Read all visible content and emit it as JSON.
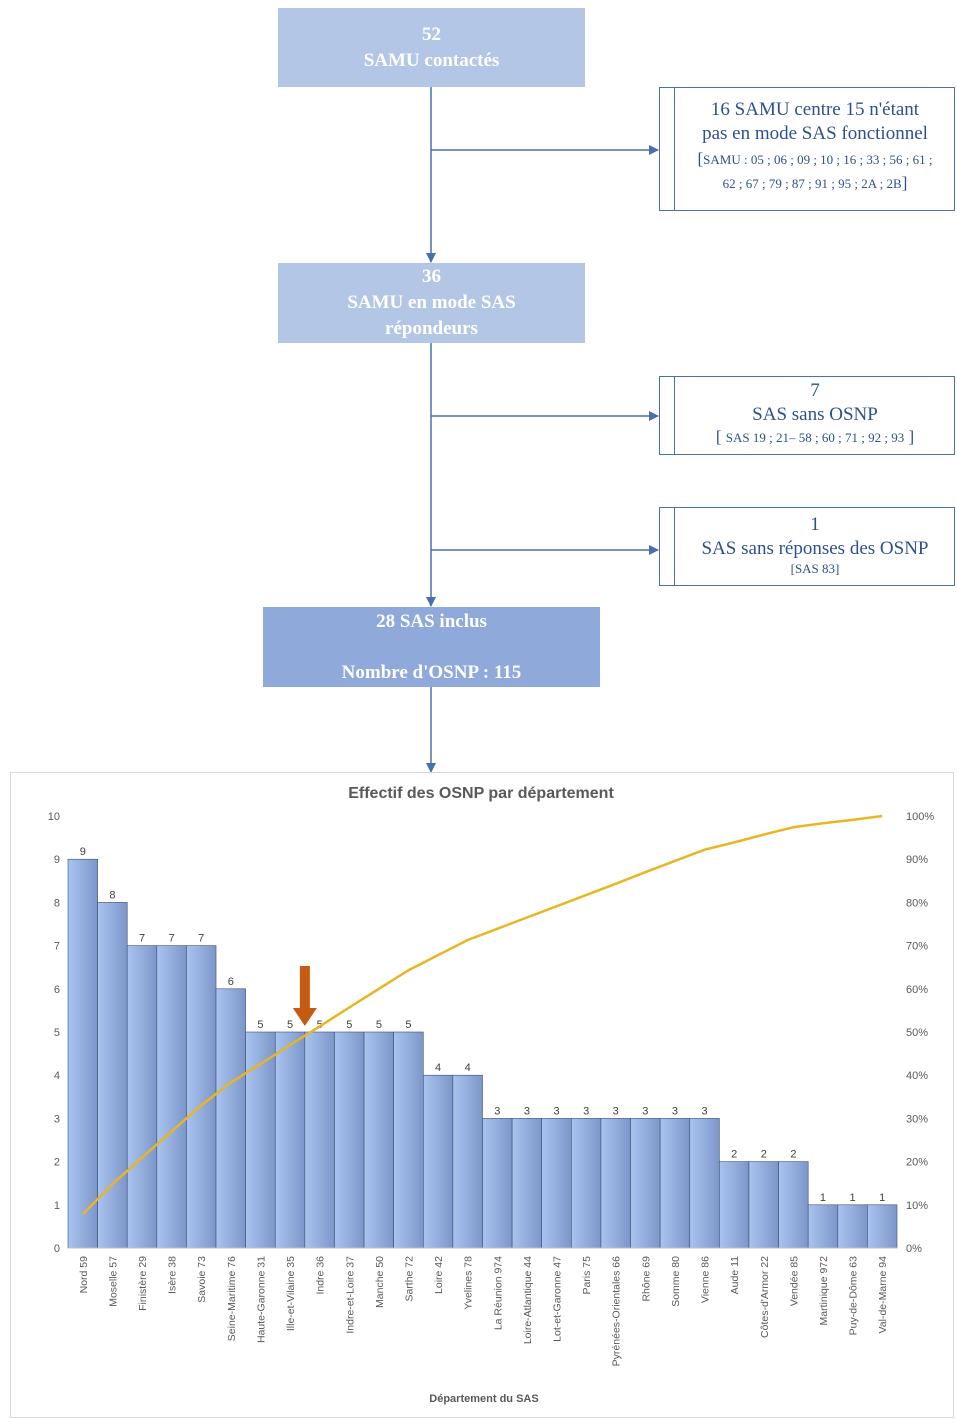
{
  "flow": {
    "box1": {
      "line1": "52",
      "line2": "SAMU contactés"
    },
    "box2": {
      "line1": "36",
      "line2": "SAMU en mode SAS",
      "line3": "répondeurs"
    },
    "box3": {
      "line1": "28 SAS inclus",
      "line2": "Nombre d'OSNP : 115"
    },
    "side1": {
      "line1": "16 SAMU centre 15 n'étant",
      "line2": "pas en mode SAS fonctionnel",
      "line3": "SAMU : 05 ; 06 ; 09 ; 10 ; 16 ; 33 ; 56 ; 61 ;",
      "line4": "62 ; 67 ; 79 ; 87 ; 91 ; 95 ; 2A ; 2B"
    },
    "side2": {
      "line1": "7",
      "line2": "SAS sans OSNP",
      "line3": "SAS 19 ; 21– 58 ; 60 ; 71 ; 92 ; 93"
    },
    "side3": {
      "line1": "1",
      "line2": "SAS sans réponses des OSNP",
      "line3": "[SAS 83]"
    },
    "colors": {
      "box_light": "#b4c6e6",
      "box_mid": "#8fa9db",
      "arrow": "#4a6fb0",
      "side_text": "#2f4f8f"
    }
  },
  "chart_data": {
    "type": "bar",
    "title": "Effectif des OSNP par département",
    "xlabel": "Département du SAS",
    "ylabel": "",
    "ylim": [
      0,
      10
    ],
    "y2lim": [
      0,
      100
    ],
    "yticks": [
      "0",
      "1",
      "2",
      "3",
      "4",
      "5",
      "6",
      "7",
      "8",
      "9",
      "10"
    ],
    "y2ticks": [
      "0%",
      "10%",
      "20%",
      "30%",
      "40%",
      "50%",
      "60%",
      "70%",
      "80%",
      "90%",
      "100%"
    ],
    "categories": [
      "Nord 59",
      "Moselle 57",
      "Finistère 29",
      "Isère 38",
      "Savoie 73",
      "Seine-Maritime 76",
      "Haute-Garonne 31",
      "Ille-et-Vilaine 35",
      "Indre 36",
      "Indre-et-Loire 37",
      "Manche 50",
      "Sarthe 72",
      "Loire 42",
      "Yvelines 78",
      "La Réunion 974",
      "Loire-Atlantique 44",
      "Lot-et-Garonne 47",
      "Paris 75",
      "Pyrénées-Orientales 66",
      "Rhône 69",
      "Somme 80",
      "Vienne 86",
      "Aude 11",
      "Côtes-d'Armor 22",
      "Vendée 85",
      "Martinique 972",
      "Puy-de-Dôme 63",
      "Val-de-Marne 94"
    ],
    "values": [
      9,
      8,
      7,
      7,
      7,
      6,
      5,
      5,
      5,
      5,
      5,
      5,
      4,
      4,
      3,
      3,
      3,
      3,
      3,
      3,
      3,
      3,
      2,
      2,
      2,
      1,
      1,
      1
    ],
    "value_labels": [
      "9",
      "8",
      "7",
      "7",
      "7",
      "6",
      "5",
      "5",
      "5",
      "5",
      "5",
      "5",
      "4",
      "4",
      "3",
      "3",
      "3",
      "3",
      "3",
      "3",
      "3",
      "3",
      "2",
      "2",
      "2",
      "1",
      "1",
      "1"
    ],
    "cumulative_pct": [
      7.8,
      14.8,
      20.9,
      27.0,
      33.0,
      38.3,
      42.6,
      47.0,
      51.3,
      55.7,
      60.0,
      64.3,
      67.8,
      71.3,
      73.9,
      76.5,
      79.1,
      81.7,
      84.3,
      87.0,
      89.6,
      92.2,
      93.9,
      95.7,
      97.4,
      98.3,
      99.1,
      100
    ],
    "grid": false,
    "legend": "none",
    "annotation": "arrow pointing at Indre 36 (50%)",
    "colors": {
      "bar_start": "#a9c4f0",
      "bar_end": "#7d96c9",
      "bar_edge": "#3d4f73",
      "line": "#e8b623",
      "annotation_arrow": "#c55a11"
    }
  }
}
